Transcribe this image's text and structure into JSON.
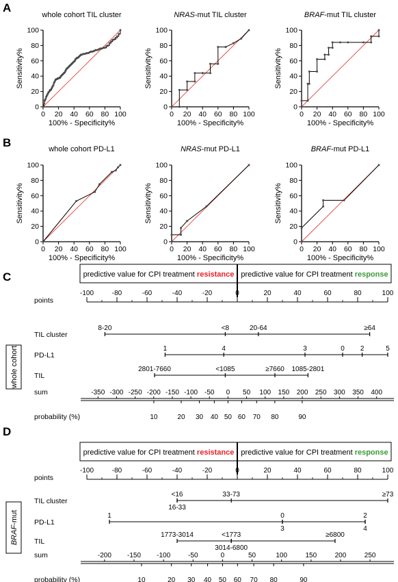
{
  "panels": {
    "A": "A",
    "B": "B",
    "C": "C",
    "D": "D"
  },
  "roc_axis": {
    "xlabel": "100% - Specificity%",
    "ylabel": "Sensitivity%",
    "ticks": [
      "0",
      "20",
      "40",
      "60",
      "80",
      "100"
    ]
  },
  "chart_data": [
    {
      "type": "line",
      "title": "whole cohort TIL cluster",
      "xlim": [
        0,
        100
      ],
      "ylim": [
        0,
        100
      ],
      "step": true,
      "x": [
        0,
        1,
        2,
        3,
        4,
        5,
        6,
        7,
        8,
        9,
        10,
        11,
        12,
        13,
        14,
        15,
        16,
        17,
        18,
        19,
        20,
        21,
        22,
        23,
        24,
        25,
        26,
        27,
        28,
        29,
        30,
        31,
        32,
        33,
        34,
        35,
        36,
        37,
        38,
        39,
        40,
        41,
        42,
        43,
        44,
        45,
        46,
        47,
        48,
        49,
        50,
        52,
        54,
        56,
        58,
        60,
        62,
        64,
        66,
        68,
        70,
        72,
        74,
        76,
        78,
        80,
        82,
        84,
        86,
        88,
        90,
        92,
        94,
        96,
        98,
        100
      ],
      "y": [
        0,
        4,
        8,
        10,
        13,
        15,
        17,
        19,
        20,
        22,
        22,
        24,
        26,
        28,
        31,
        33,
        35,
        36,
        36,
        37,
        37,
        38,
        38,
        40,
        41,
        42,
        43,
        44,
        45,
        47,
        49,
        50,
        51,
        52,
        53,
        54,
        55,
        56,
        57,
        58,
        59,
        60,
        62,
        63,
        64,
        64,
        65,
        66,
        67,
        68,
        68,
        69,
        69,
        70,
        70,
        71,
        72,
        72,
        73,
        74,
        74,
        75,
        76,
        76,
        77,
        77,
        79,
        80,
        83,
        85,
        87,
        88,
        90,
        92,
        95,
        100
      ]
    },
    {
      "type": "line",
      "title": "NRAS-mut TIL cluster",
      "title_italic": "NRAS",
      "title_rest": "-mut TIL cluster",
      "xlim": [
        0,
        100
      ],
      "ylim": [
        0,
        100
      ],
      "step": true,
      "x": [
        0,
        10,
        10,
        20,
        20,
        30,
        30,
        40,
        40,
        50,
        50,
        60,
        60,
        70,
        70,
        80,
        90,
        100
      ],
      "y": [
        0,
        0,
        22,
        22,
        33,
        33,
        44,
        44,
        44,
        44,
        56,
        56,
        78,
        78,
        78,
        83,
        89,
        100
      ]
    },
    {
      "type": "line",
      "title": "BRAF-mut TIL cluster",
      "title_italic": "BRAF",
      "title_rest": "-mut TIL cluster",
      "xlim": [
        0,
        100
      ],
      "ylim": [
        0,
        100
      ],
      "step": true,
      "x": [
        0,
        0,
        8,
        8,
        10,
        10,
        20,
        20,
        30,
        30,
        35,
        35,
        40,
        40,
        50,
        60,
        80,
        90,
        90,
        100,
        100
      ],
      "y": [
        0,
        8,
        8,
        30,
        30,
        46,
        46,
        62,
        62,
        68,
        68,
        77,
        77,
        84,
        84,
        84,
        84,
        84,
        92,
        92,
        100
      ]
    },
    {
      "type": "line",
      "title": "whole cohort PD-L1",
      "xlim": [
        0,
        100
      ],
      "ylim": [
        0,
        100
      ],
      "x": [
        0,
        43,
        67,
        73,
        89,
        94,
        97,
        100
      ],
      "y": [
        0,
        53,
        65,
        75,
        91,
        93,
        97,
        100
      ]
    },
    {
      "type": "line",
      "title": "NRAS-mut PD-L1",
      "title_italic": "NRAS",
      "title_rest": "-mut PD-L1",
      "xlim": [
        0,
        100
      ],
      "ylim": [
        0,
        100
      ],
      "x": [
        0,
        0,
        12,
        12,
        20,
        45,
        100
      ],
      "y": [
        0,
        9,
        9,
        18,
        27,
        46,
        100
      ]
    },
    {
      "type": "line",
      "title": "BRAF-mut PD-L1",
      "title_italic": "BRAF",
      "title_rest": "-mut PD-L1",
      "xlim": [
        0,
        100
      ],
      "ylim": [
        0,
        100
      ],
      "x": [
        0,
        0,
        28,
        28,
        55,
        100
      ],
      "y": [
        0,
        18,
        46,
        54,
        54,
        100
      ]
    }
  ],
  "nomograms": [
    {
      "side_label": "whole cohort",
      "resistance_prefix": "predictive value for CPI treatment ",
      "resistance_word": "resistance",
      "response_prefix": "predictive value for CPI treatment ",
      "response_word": "response",
      "colors": {
        "resistance": "#e8212a",
        "response": "#3a9b3a"
      },
      "points": {
        "label": "points",
        "ticks": [
          -100,
          -80,
          -60,
          -40,
          -20,
          0,
          20,
          40,
          60,
          80,
          100
        ]
      },
      "variables": [
        {
          "label": "TIL cluster",
          "range": [
            -88,
            88
          ],
          "marks": [
            {
              "text": "8-20",
              "at": -88,
              "pos": "above"
            },
            {
              "text": "<8",
              "at": -8,
              "pos": "above"
            },
            {
              "text": "20-64",
              "at": 14,
              "pos": "above"
            },
            {
              "text": "≥64",
              "at": 88,
              "pos": "above"
            }
          ]
        },
        {
          "label": "PD-L1",
          "range": [
            -48,
            100
          ],
          "marks": [
            {
              "text": "1",
              "at": -48,
              "pos": "above"
            },
            {
              "text": "4",
              "at": -9,
              "pos": "above"
            },
            {
              "text": "3",
              "at": 45,
              "pos": "above"
            },
            {
              "text": "0",
              "at": 70,
              "pos": "above"
            },
            {
              "text": "2",
              "at": 83,
              "pos": "above"
            },
            {
              "text": "5",
              "at": 100,
              "pos": "above"
            }
          ]
        },
        {
          "label": "TIL",
          "range": [
            -55,
            47
          ],
          "marks": [
            {
              "text": "2801-7660",
              "at": -55,
              "pos": "above"
            },
            {
              "text": "<1085",
              "at": -8,
              "pos": "above"
            },
            {
              "text": "≥7660",
              "at": 25,
              "pos": "above"
            },
            {
              "text": "1085-2801",
              "at": 47,
              "pos": "above"
            }
          ]
        }
      ],
      "sum": {
        "label": "sum",
        "ticks": [
          -350,
          -300,
          -250,
          -200,
          -150,
          -100,
          -50,
          0,
          50,
          100,
          150,
          200,
          250,
          300,
          350,
          400
        ],
        "range": [
          -380,
          430
        ]
      },
      "probability": {
        "label": "probability (%)",
        "ticks": [
          10,
          20,
          30,
          40,
          50,
          60,
          70,
          80,
          90
        ]
      }
    },
    {
      "side_label_italic": "BRAF",
      "side_label_rest": "-mut",
      "resistance_prefix": "predictive value for CPI treatment ",
      "resistance_word": "resistance",
      "response_prefix": "predictive value for CPI treatment ",
      "response_word": "response",
      "points": {
        "label": "points",
        "ticks": [
          -100,
          -80,
          -60,
          -40,
          -20,
          0,
          20,
          40,
          60,
          80,
          100
        ]
      },
      "variables": [
        {
          "label": "TIL cluster",
          "range": [
            -40,
            100
          ],
          "marks": [
            {
              "text": "<16",
              "at": -40,
              "pos": "above"
            },
            {
              "text": "16-33",
              "at": -40,
              "pos": "below"
            },
            {
              "text": "33-73",
              "at": -4,
              "pos": "above"
            },
            {
              "text": "≥73",
              "at": 100,
              "pos": "above"
            }
          ]
        },
        {
          "label": "PD-L1",
          "range": [
            -85,
            85
          ],
          "marks": [
            {
              "text": "1",
              "at": -85,
              "pos": "above"
            },
            {
              "text": "0",
              "at": 30,
              "pos": "above"
            },
            {
              "text": "3",
              "at": 30,
              "pos": "below"
            },
            {
              "text": "2",
              "at": 85,
              "pos": "above"
            },
            {
              "text": "4",
              "at": 85,
              "pos": "below"
            }
          ]
        },
        {
          "label": "TIL",
          "range": [
            -40,
            65
          ],
          "marks": [
            {
              "text": "1773-3014",
              "at": -40,
              "pos": "above"
            },
            {
              "text": "<1773",
              "at": -4,
              "pos": "above"
            },
            {
              "text": "3014-6800",
              "at": -4,
              "pos": "below"
            },
            {
              "text": "≥6800",
              "at": 65,
              "pos": "above"
            }
          ]
        }
      ],
      "sum": {
        "label": "sum",
        "ticks": [
          -200,
          -150,
          -100,
          -50,
          0,
          50,
          100,
          150,
          200,
          250
        ],
        "range": [
          -230,
          280
        ]
      },
      "probability": {
        "label": "probability (%)",
        "ticks": [
          10,
          20,
          30,
          40,
          50,
          60,
          70,
          80,
          90
        ]
      }
    }
  ]
}
